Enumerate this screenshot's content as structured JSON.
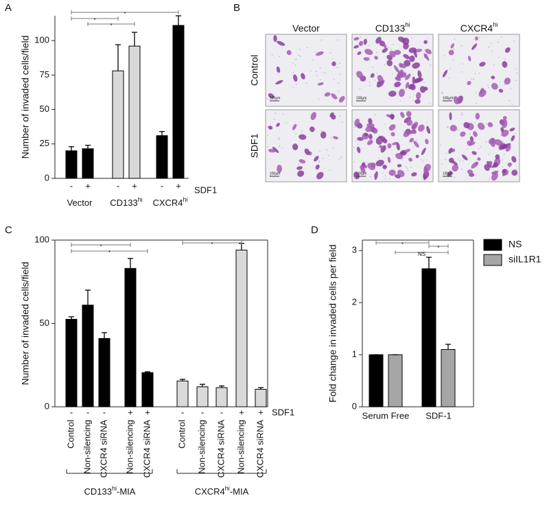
{
  "chart_data": [
    {
      "type": "bar",
      "panel": "A",
      "ylabel": "Number of invaded cells/field",
      "categories": [
        "-",
        "+",
        "-",
        "+",
        "-",
        "+"
      ],
      "values": [
        20,
        21.5,
        78,
        96,
        31,
        111
      ],
      "errors": [
        3,
        2.5,
        19,
        10,
        3,
        7
      ],
      "colors": [
        "#000000",
        "#000000",
        "#d9d9d9",
        "#d9d9d9",
        "#000000",
        "#000000"
      ],
      "groups": [
        {
          "main": "Vector"
        },
        {
          "main": "CD133",
          "sup": "hi"
        },
        {
          "main": "CXCR4",
          "sup": "hi"
        }
      ],
      "condition_label": "SDF1",
      "ylim": [
        0,
        118
      ],
      "yticks": [
        0,
        25,
        50,
        75,
        100
      ],
      "annotations": [
        "*",
        "*",
        "*"
      ]
    },
    {
      "type": "bar",
      "panel": "C",
      "ylabel": "Number of invaded cells/field",
      "categories": [
        "Control",
        "Non-silencing",
        "CXCR4 siRNA",
        "Non-silencing",
        "CXCR4 siRNA",
        "Control",
        "Non-silencing",
        "CXCR4 siRNA",
        "Non-silencing",
        "CXCR4 siRNA"
      ],
      "conditions": [
        "-",
        "-",
        "-",
        "+",
        "+",
        "-",
        "-",
        "-",
        "+",
        "+"
      ],
      "values": [
        52.5,
        61,
        41,
        83,
        20.5,
        15.5,
        12,
        11.5,
        94,
        10.5
      ],
      "errors": [
        1.5,
        9,
        3.5,
        6,
        0.5,
        1,
        1.5,
        1,
        4,
        1
      ],
      "colors": [
        "#000000",
        "#000000",
        "#000000",
        "#000000",
        "#000000",
        "#d9d9d9",
        "#d9d9d9",
        "#d9d9d9",
        "#d9d9d9",
        "#d9d9d9"
      ],
      "groups": [
        {
          "main": "CD133",
          "sup": "hi",
          "suffix": "-MIA"
        },
        {
          "main": "CXCR4",
          "sup": "hi",
          "suffix": "-MIA"
        }
      ],
      "condition_label": "SDF1",
      "ylim": [
        0,
        100
      ],
      "yticks": [
        0,
        50,
        100
      ],
      "annotations": [
        "*",
        "*",
        "*"
      ]
    },
    {
      "type": "bar",
      "panel": "D",
      "ylabel": "Fold change in invaded cells per field",
      "categories": [
        "Serum Free",
        "SDF-1"
      ],
      "series": [
        {
          "name": "NS",
          "color": "#000000",
          "values": [
            1,
            2.65
          ],
          "errors": [
            0,
            0.22
          ]
        },
        {
          "name": "siIL1R1",
          "color": "#a6a6a6",
          "values": [
            1,
            1.1
          ],
          "errors": [
            0,
            0.1
          ]
        }
      ],
      "ylim": [
        0,
        3.2
      ],
      "yticks": [
        0,
        1,
        2,
        3
      ],
      "annotations": [
        "*",
        "*",
        "NS"
      ]
    }
  ],
  "image_grid": {
    "panel": "B",
    "columns": [
      {
        "main": "Vector"
      },
      {
        "main": "CD133",
        "sup": "hi"
      },
      {
        "main": "CXCR4",
        "sup": "hi"
      }
    ],
    "rows": [
      "Control",
      "SDF1"
    ],
    "scale_bar": "100µm"
  }
}
